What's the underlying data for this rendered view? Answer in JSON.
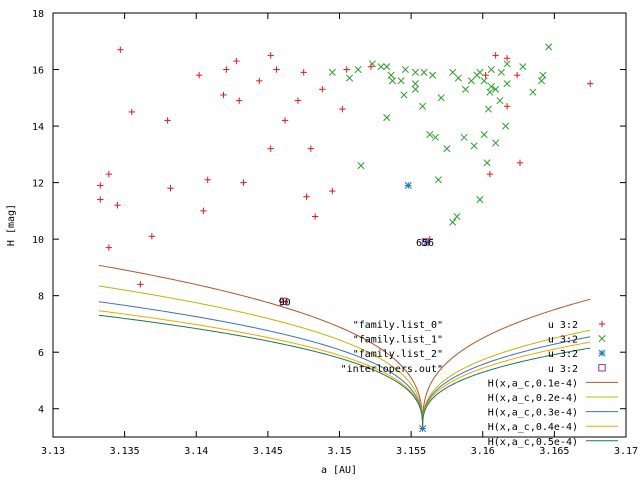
{
  "chart_data": {
    "type": "scatter",
    "title": "",
    "xlabel": "a [AU]",
    "ylabel": "H [mag]",
    "xlim": [
      3.13,
      3.17
    ],
    "ylim": [
      3,
      18
    ],
    "xticks": [
      "3.13",
      "3.135",
      "3.14",
      "3.145",
      "3.15",
      "3.155",
      "3.16",
      "3.165",
      "3.17"
    ],
    "xtick_values": [
      3.13,
      3.135,
      3.14,
      3.145,
      3.15,
      3.155,
      3.16,
      3.165,
      3.17
    ],
    "yticks": [
      "4",
      "6",
      "8",
      "10",
      "12",
      "14",
      "16",
      "18"
    ],
    "ytick_values": [
      4,
      6,
      8,
      10,
      12,
      14,
      16,
      18
    ],
    "grid": false,
    "legend_position": "bottom-right",
    "series": [
      {
        "name": "\"family.list_0\"",
        "legend_suffix": "u 3:2",
        "marker": "plus",
        "color": "#e31a1c",
        "points": [
          [
            3.1347,
            16.7
          ],
          [
            3.1355,
            14.5
          ],
          [
            3.138,
            14.2
          ],
          [
            3.1402,
            15.8
          ],
          [
            3.1419,
            15.1
          ],
          [
            3.1421,
            16.0
          ],
          [
            3.1428,
            16.3
          ],
          [
            3.143,
            14.9
          ],
          [
            3.1444,
            15.6
          ],
          [
            3.1452,
            16.5
          ],
          [
            3.1456,
            16.0
          ],
          [
            3.1462,
            14.2
          ],
          [
            3.1471,
            14.9
          ],
          [
            3.1475,
            15.9
          ],
          [
            3.1488,
            15.3
          ],
          [
            3.1502,
            14.6
          ],
          [
            3.1522,
            16.1
          ],
          [
            3.1505,
            16.0
          ],
          [
            3.1333,
            11.4
          ],
          [
            3.1333,
            11.9
          ],
          [
            3.1339,
            12.3
          ],
          [
            3.1345,
            11.2
          ],
          [
            3.1339,
            9.7
          ],
          [
            3.1369,
            10.1
          ],
          [
            3.1361,
            8.4
          ],
          [
            3.1382,
            11.8
          ],
          [
            3.1405,
            11.0
          ],
          [
            3.1408,
            12.1
          ],
          [
            3.1433,
            12.0
          ],
          [
            3.1452,
            13.2
          ],
          [
            3.148,
            13.2
          ],
          [
            3.1477,
            11.5
          ],
          [
            3.1483,
            10.8
          ],
          [
            3.1495,
            11.7
          ],
          [
            3.1675,
            15.5
          ],
          [
            3.1624,
            15.8
          ],
          [
            3.1617,
            14.7
          ],
          [
            3.1617,
            16.4
          ],
          [
            3.1609,
            16.5
          ],
          [
            3.1602,
            15.8
          ],
          [
            3.1626,
            12.7
          ],
          [
            3.1605,
            12.3
          ],
          [
            3.1563,
            10.0
          ],
          [
            3.1461,
            7.8
          ]
        ]
      },
      {
        "name": "\"family.list_1\"",
        "legend_suffix": "u 3:2",
        "marker": "x",
        "color": "#2ca02c",
        "points": [
          [
            3.1495,
            15.9
          ],
          [
            3.1507,
            15.7
          ],
          [
            3.1513,
            16.0
          ],
          [
            3.1523,
            16.2
          ],
          [
            3.1529,
            16.1
          ],
          [
            3.1536,
            15.8
          ],
          [
            3.1543,
            15.6
          ],
          [
            3.1553,
            15.9
          ],
          [
            3.1533,
            16.1
          ],
          [
            3.1546,
            16.0
          ],
          [
            3.1559,
            15.9
          ],
          [
            3.1565,
            15.8
          ],
          [
            3.1553,
            15.3
          ],
          [
            3.1558,
            14.7
          ],
          [
            3.1533,
            14.3
          ],
          [
            3.1545,
            15.1
          ],
          [
            3.1567,
            13.6
          ],
          [
            3.1571,
            15.0
          ],
          [
            3.1579,
            15.9
          ],
          [
            3.1563,
            13.7
          ],
          [
            3.1592,
            15.6
          ],
          [
            3.1598,
            15.9
          ],
          [
            3.1601,
            15.6
          ],
          [
            3.1604,
            14.6
          ],
          [
            3.1596,
            15.8
          ],
          [
            3.1606,
            16.0
          ],
          [
            3.1613,
            15.9
          ],
          [
            3.1617,
            15.5
          ],
          [
            3.1609,
            15.3
          ],
          [
            3.1612,
            14.9
          ],
          [
            3.1601,
            13.7
          ],
          [
            3.1609,
            13.4
          ],
          [
            3.1594,
            13.3
          ],
          [
            3.1575,
            13.2
          ],
          [
            3.1569,
            12.1
          ],
          [
            3.1603,
            12.7
          ],
          [
            3.1598,
            11.4
          ],
          [
            3.1582,
            10.8
          ],
          [
            3.1579,
            10.6
          ],
          [
            3.1587,
            13.6
          ],
          [
            3.1635,
            15.2
          ],
          [
            3.1641,
            15.6
          ],
          [
            3.1646,
            16.8
          ],
          [
            3.1628,
            16.1
          ],
          [
            3.1642,
            15.8
          ],
          [
            3.1588,
            15.3
          ],
          [
            3.1515,
            12.6
          ],
          [
            3.1605,
            15.2
          ],
          [
            3.1553,
            15.5
          ],
          [
            3.1537,
            15.6
          ],
          [
            3.1617,
            16.2
          ],
          [
            3.1583,
            15.7
          ],
          [
            3.1616,
            14.0
          ],
          [
            3.1606,
            15.4
          ]
        ]
      },
      {
        "name": "\"family.list_2\"",
        "legend_suffix": "u 3:2",
        "marker": "star",
        "color": "#1f77b4",
        "points": [
          [
            3.1548,
            11.9
          ],
          [
            3.1561,
            9.9
          ],
          [
            3.1558,
            3.3
          ]
        ]
      },
      {
        "name": "\"interlopers.out\"",
        "legend_suffix": "u 3:2",
        "marker": "square",
        "color": "#9b2f8f",
        "points": [
          [
            3.1461,
            7.8
          ],
          [
            3.156,
            9.9
          ]
        ]
      }
    ],
    "curves": [
      {
        "label": "H(x,a_c,0.1e-4)",
        "color": "#b5542a",
        "k": 0.1
      },
      {
        "label": "H(x,a_c,0.2e-4)",
        "color": "#c8b400",
        "k": 0.2
      },
      {
        "label": "H(x,a_c,0.3e-4)",
        "color": "#3d6fc9",
        "k": 0.3
      },
      {
        "label": "H(x,a_c,0.4e-4)",
        "color": "#f0a800",
        "k": 0.4
      },
      {
        "label": "H(x,a_c,0.5e-4)",
        "color": "#1e7a4b",
        "k": 0.5
      }
    ],
    "a_c": 3.1558,
    "annotations": [
      {
        "text": "90",
        "x": 3.1461,
        "y": 7.8
      },
      {
        "text": "656",
        "x": 3.1559,
        "y": 9.9
      }
    ]
  }
}
